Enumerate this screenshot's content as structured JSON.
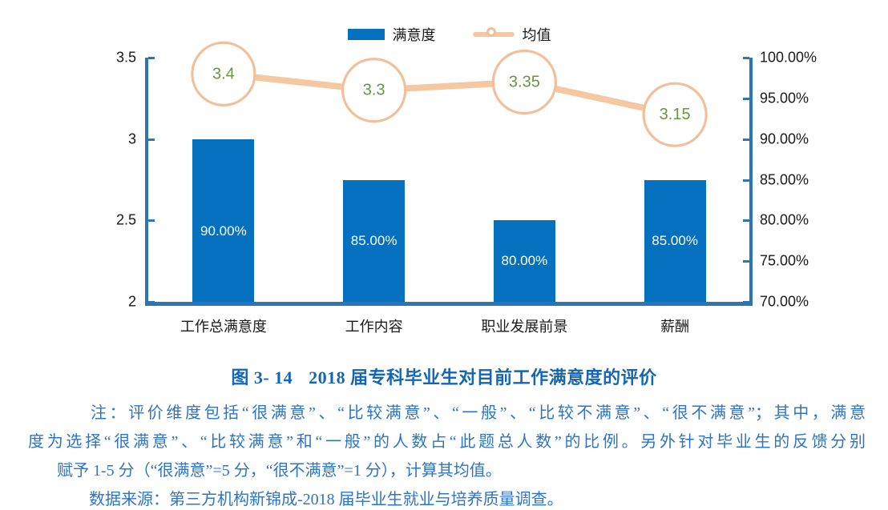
{
  "colors": {
    "bar": "#0571BE",
    "axis": "#2E75B6",
    "line": "#F6C8A2",
    "marker_fill": "#FFFFFF",
    "marker_stroke": "#F2BF9B",
    "line_value_text": "#68963E",
    "bar_value_text": "#FFFFFF",
    "tick_text": "#1A1A1A",
    "caption_text": "#1566B2",
    "note_text": "#2E74C5"
  },
  "legend": {
    "bar_label": "满意度",
    "line_label": "均值"
  },
  "chart_data": {
    "type": "combo-bar-line",
    "categories": [
      "工作总满意度",
      "工作内容",
      "职业发展前景",
      "薪酬"
    ],
    "series": [
      {
        "name": "满意度",
        "type": "bar",
        "axis": "right",
        "values": [
          90,
          85,
          80,
          85
        ],
        "value_labels": [
          "90.00%",
          "85.00%",
          "80.00%",
          "85.00%"
        ]
      },
      {
        "name": "均值",
        "type": "line",
        "axis": "left",
        "values": [
          3.4,
          3.3,
          3.35,
          3.15
        ],
        "value_labels": [
          "3.4",
          "3.3",
          "3.35",
          "3.15"
        ]
      }
    ],
    "left_axis": {
      "min": 2,
      "max": 3.5,
      "tick_values": [
        3.5,
        3,
        2.5,
        2
      ],
      "tick_labels": [
        "3.5",
        "3",
        "2.5",
        "2"
      ]
    },
    "right_axis": {
      "min": 70,
      "max": 100,
      "tick_values": [
        100,
        95,
        90,
        85,
        80,
        75,
        70
      ],
      "tick_labels": [
        "100.00%",
        "95.00%",
        "90.00%",
        "85.00%",
        "80.00%",
        "75.00%",
        "70.00%"
      ]
    },
    "legend_position": "top",
    "grid": false
  },
  "caption": {
    "number": "图 3- 14",
    "title": "2018 届专科毕业生对目前工作满意度的评价"
  },
  "note": {
    "lines": [
      "注：评价维度包括“很满意”、“比较满意”、“一般”、“比较不满意”、“很不满意”；其中，满意",
      "度为选择“很满意”、“比较满意”和“一般”的人数占“此题总人数”的比例。另外针对毕业生的反馈分别",
      "赋予 1-5 分（“很满意”=5 分，“很不满意”=1 分），计算其均值。",
      "数据来源：第三方机构新锦成-2018 届毕业生就业与培养质量调查。"
    ]
  }
}
